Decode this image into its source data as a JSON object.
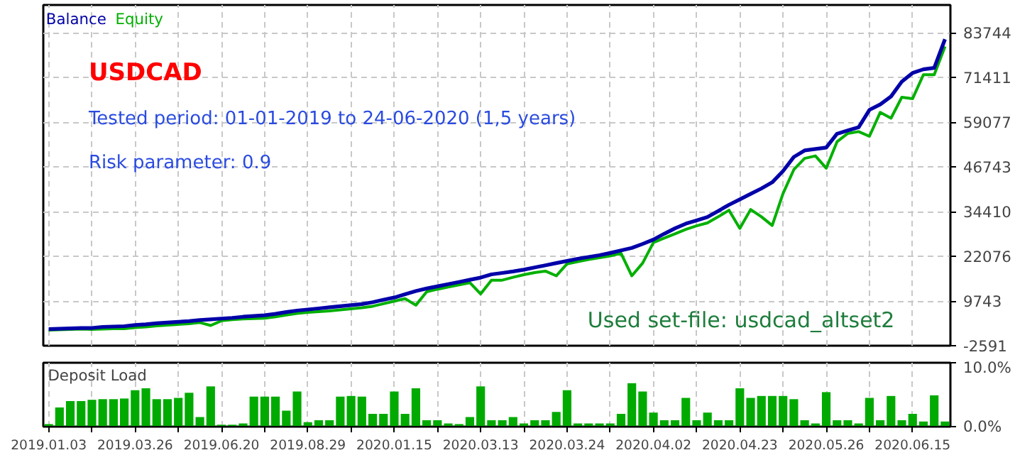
{
  "chart_data": [
    {
      "type": "line",
      "legend": "top left",
      "grid": true,
      "tick_labels": "y",
      "annotations": [
        "USDCAD",
        "Tested period: 01-01-2019 to 24-06-2020 (1,5 years)",
        "Risk parameter: 0.9",
        "Used set-file: usdcad_altset2"
      ],
      "categories": [
        "2019.01.03",
        null,
        null,
        null,
        null,
        null,
        null,
        null,
        "2019.03.26",
        null,
        null,
        null,
        null,
        null,
        null,
        null,
        "2019.06.20",
        null,
        null,
        null,
        null,
        null,
        null,
        null,
        "2019.08.29",
        null,
        null,
        null,
        null,
        null,
        null,
        null,
        "2020.01.15",
        null,
        null,
        null,
        null,
        null,
        null,
        null,
        "2020.03.13",
        null,
        null,
        null,
        null,
        null,
        null,
        null,
        "2020.03.24",
        null,
        null,
        null,
        null,
        null,
        null,
        null,
        "2020.04.02",
        null,
        null,
        null,
        null,
        null,
        null,
        null,
        "2020.04.23",
        null,
        null,
        null,
        null,
        null,
        null,
        null,
        "2020.05.26",
        null,
        null,
        null,
        null,
        null,
        null,
        null,
        "2020.06.15",
        null,
        null,
        null
      ],
      "series": [
        {
          "name": "Balance",
          "color": "#0000a8",
          "values": [
            2000,
            2100,
            2200,
            2300,
            2300,
            2600,
            2700,
            2800,
            3100,
            3300,
            3600,
            3800,
            4000,
            4200,
            4500,
            4700,
            4900,
            5100,
            5400,
            5600,
            5800,
            6200,
            6700,
            7100,
            7400,
            7700,
            8000,
            8300,
            8600,
            8900,
            9400,
            10100,
            10700,
            11600,
            12500,
            13200,
            13800,
            14400,
            15000,
            15600,
            16200,
            17100,
            17500,
            17900,
            18400,
            19000,
            19600,
            20200,
            20800,
            21400,
            21900,
            22400,
            23000,
            23700,
            24400,
            25500,
            26700,
            28300,
            29800,
            31100,
            32000,
            32900,
            34600,
            36300,
            37800,
            39300,
            40800,
            42500,
            45600,
            49500,
            51300,
            51700,
            52100,
            55900,
            56800,
            57700,
            62500,
            64000,
            66200,
            70300,
            72700,
            73700,
            74100,
            82000
          ]
        },
        {
          "name": "Equity",
          "color": "#00b000",
          "values": [
            1700,
            1800,
            1900,
            2000,
            1900,
            2000,
            2100,
            2100,
            2400,
            2600,
            2900,
            3100,
            3300,
            3500,
            3800,
            3000,
            4300,
            4600,
            4800,
            4900,
            5000,
            5400,
            5900,
            6300,
            6600,
            6800,
            7000,
            7300,
            7600,
            7900,
            8300,
            9000,
            9700,
            10400,
            8600,
            12300,
            13000,
            13600,
            14200,
            14800,
            11700,
            15500,
            15500,
            16300,
            17000,
            17600,
            18000,
            16700,
            20000,
            20600,
            21200,
            21700,
            22200,
            22900,
            16700,
            20200,
            25900,
            27100,
            28300,
            29500,
            30500,
            31300,
            33000,
            34800,
            29800,
            35000,
            33000,
            30600,
            39400,
            46000,
            49100,
            49800,
            46400,
            53700,
            56000,
            56500,
            55200,
            61800,
            60200,
            66000,
            65600,
            72200,
            72200,
            80000
          ]
        }
      ],
      "ylim": [
        -2591,
        91450
      ],
      "yticks": [
        -2591,
        9743,
        22076,
        34410,
        46743,
        59077,
        71411,
        83744
      ]
    },
    {
      "type": "bar",
      "title": "Deposit Load",
      "grid": "x",
      "color": "#00aa00",
      "categories": [
        "2019.01.03",
        null,
        null,
        null,
        null,
        null,
        null,
        null,
        "2019.03.26",
        null,
        null,
        null,
        null,
        null,
        null,
        null,
        "2019.06.20",
        null,
        null,
        null,
        null,
        null,
        null,
        null,
        "2019.08.29",
        null,
        null,
        null,
        null,
        null,
        null,
        null,
        "2020.01.15",
        null,
        null,
        null,
        null,
        null,
        null,
        null,
        "2020.03.13",
        null,
        null,
        null,
        null,
        null,
        null,
        null,
        "2020.03.24",
        null,
        null,
        null,
        null,
        null,
        null,
        null,
        "2020.04.02",
        null,
        null,
        null,
        null,
        null,
        null,
        null,
        "2020.04.23",
        null,
        null,
        null,
        null,
        null,
        null,
        null,
        "2020.05.26",
        null,
        null,
        null,
        null,
        null,
        null,
        null,
        "2020.06.15",
        null,
        null,
        null
      ],
      "values": [
        0.4,
        3.0,
        4.0,
        4.0,
        4.2,
        4.3,
        4.3,
        4.4,
        5.7,
        6.0,
        4.3,
        4.3,
        4.5,
        5.3,
        1.5,
        6.3,
        0.3,
        0.3,
        0.5,
        4.7,
        4.7,
        4.7,
        2.5,
        5.5,
        0.7,
        1.0,
        1.0,
        4.7,
        4.8,
        4.7,
        2.0,
        2.0,
        5.5,
        2.0,
        6.0,
        1.0,
        1.0,
        0.5,
        0.4,
        1.5,
        6.3,
        1.0,
        1.0,
        1.5,
        0.5,
        1.0,
        1.0,
        2.3,
        5.7,
        0.5,
        0.5,
        0.5,
        0.5,
        2.0,
        6.8,
        5.5,
        2.2,
        1.0,
        1.0,
        4.5,
        1.0,
        2.2,
        1.0,
        1.0,
        6.0,
        4.5,
        4.8,
        4.8,
        4.8,
        4.3,
        1.0,
        0.5,
        5.4,
        1.0,
        1.0,
        0.5,
        4.5,
        1.0,
        4.8,
        1.0,
        2.0,
        0.8,
        4.9,
        0.8
      ],
      "ylim": [
        0,
        10
      ],
      "yticks": [
        {
          "value": 0,
          "label": "0.0%"
        },
        {
          "value": 10,
          "label": "10.0%"
        }
      ]
    }
  ]
}
